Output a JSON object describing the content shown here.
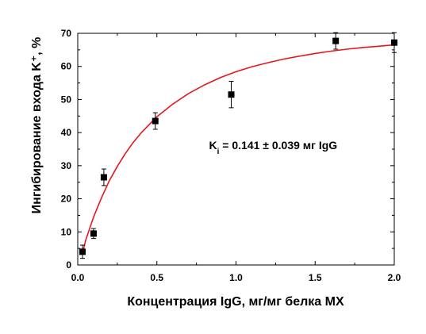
{
  "chart_data": {
    "type": "scatter",
    "title": "",
    "xlabel": "Концентрация IgG, мг/мг белка МХ",
    "ylabel": "Ингибирование входа K⁺, %",
    "xlim": [
      0.0,
      2.0
    ],
    "ylim": [
      0,
      70
    ],
    "x_ticks": [
      "0.0",
      "0.5",
      "1.0",
      "1.5",
      "2.0"
    ],
    "y_ticks": [
      "0",
      "10",
      "20",
      "30",
      "40",
      "50",
      "60",
      "70"
    ],
    "grid": false,
    "legend": "none",
    "series": [
      {
        "kind": "points",
        "marker": "square",
        "color": "#000000",
        "x": [
          0.03,
          0.1,
          0.165,
          0.49,
          0.97,
          1.63,
          2.0
        ],
        "y": [
          4,
          9.5,
          26.5,
          43.5,
          51.5,
          67.7,
          67.2
        ],
        "y_err": [
          2,
          1.5,
          2.5,
          2.5,
          4,
          2.5,
          3
        ]
      },
      {
        "kind": "curve",
        "color": "#e8161b",
        "x": [
          0.03,
          0.05,
          0.1,
          0.15,
          0.2,
          0.25,
          0.3,
          0.35,
          0.4,
          0.5,
          0.6,
          0.7,
          0.8,
          0.9,
          1.0,
          1.1,
          1.2,
          1.3,
          1.4,
          1.5,
          1.6,
          1.7,
          1.8,
          1.9,
          2.0
        ],
        "y": [
          3.5,
          7.5,
          14.5,
          20.3,
          25.5,
          29.8,
          33.6,
          37.0,
          39.9,
          44.8,
          48.6,
          51.8,
          54.4,
          56.6,
          58.4,
          59.9,
          61.1,
          62.2,
          63.1,
          63.9,
          64.6,
          65.2,
          65.7,
          66.1,
          66.5
        ]
      }
    ],
    "annotation": {
      "prefix": "K",
      "subscript": "i",
      "text": " = 0.141 ± 0.039 мг IgG",
      "at_x": 1.0,
      "at_y": 35
    }
  }
}
